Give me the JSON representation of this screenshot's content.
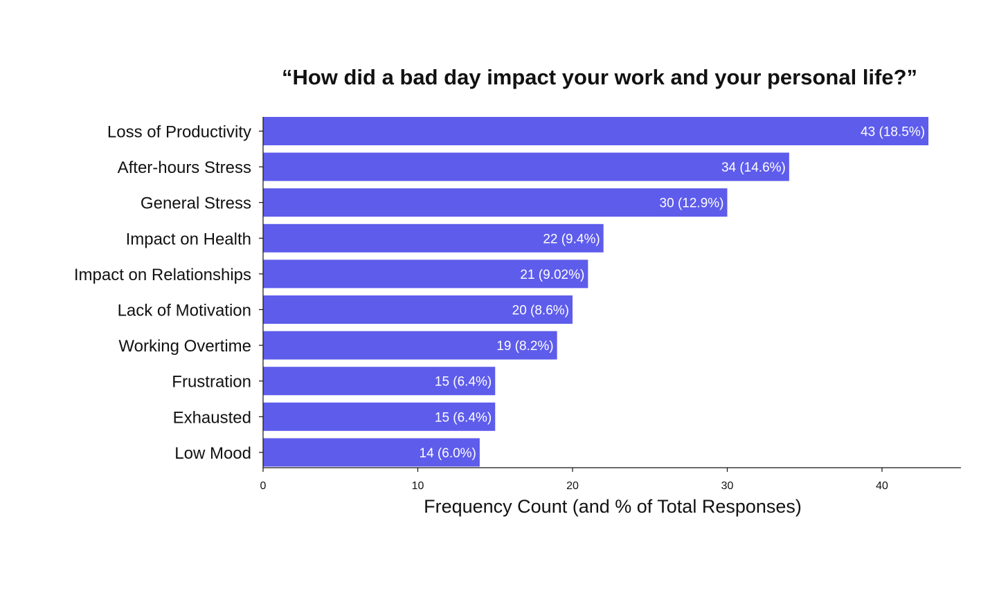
{
  "chart_data": {
    "type": "bar",
    "orientation": "horizontal",
    "title": "“How did a bad day impact your work and your personal life?”",
    "xlabel": "Frequency Count (and % of Total Responses)",
    "ylabel": "",
    "xlim": [
      0,
      45
    ],
    "xticks": [
      0,
      10,
      20,
      30,
      40
    ],
    "grid": false,
    "legend": "none",
    "bar_color": "#5E5CEB",
    "categories": [
      "Loss of Productivity",
      "After-hours Stress",
      "General Stress",
      "Impact on Health",
      "Impact on Relationships",
      "Lack of Motivation",
      "Working Overtime",
      "Frustration",
      "Exhausted",
      "Low Mood"
    ],
    "values": [
      43,
      34,
      30,
      22,
      21,
      20,
      19,
      15,
      15,
      14
    ],
    "data_labels": [
      "43 (18.5%)",
      "34 (14.6%)",
      "30 (12.9%)",
      "22 (9.4%)",
      "21 (9.02%)",
      "20 (8.6%)",
      "19 (8.2%)",
      "15 (6.4%)",
      "15 (6.4%)",
      "14 (6.0%)"
    ]
  }
}
